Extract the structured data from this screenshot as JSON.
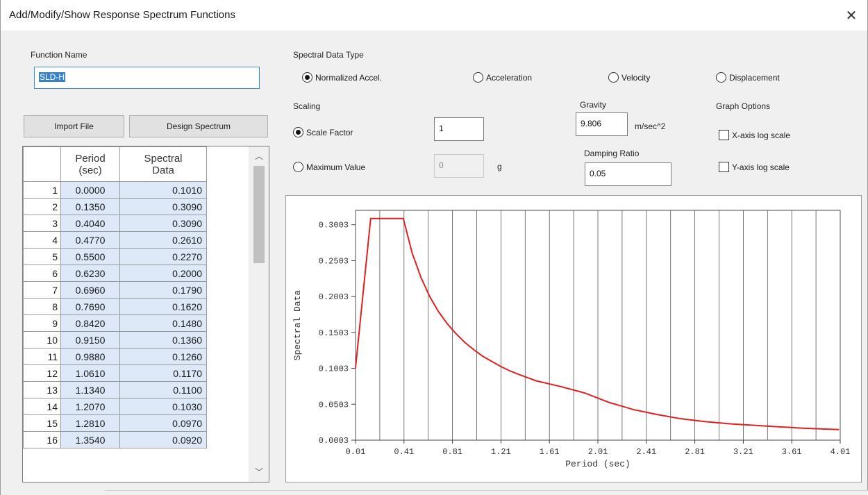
{
  "window": {
    "title": "Add/Modify/Show Response Spectrum Functions",
    "close_glyph": "✕"
  },
  "function_name": {
    "label": "Function Name",
    "value": "SLD-H"
  },
  "buttons": {
    "import_file": "Import File",
    "design_spectrum": "Design Spectrum"
  },
  "table": {
    "headers": {
      "period_l1": "Period",
      "period_l2": "(sec)",
      "spectral_l1": "Spectral",
      "spectral_l2": "Data"
    },
    "rows": [
      {
        "n": "1",
        "period": "0.0000",
        "value": "0.1010"
      },
      {
        "n": "2",
        "period": "0.1350",
        "value": "0.3090"
      },
      {
        "n": "3",
        "period": "0.4040",
        "value": "0.3090"
      },
      {
        "n": "4",
        "period": "0.4770",
        "value": "0.2610"
      },
      {
        "n": "5",
        "period": "0.5500",
        "value": "0.2270"
      },
      {
        "n": "6",
        "period": "0.6230",
        "value": "0.2000"
      },
      {
        "n": "7",
        "period": "0.6960",
        "value": "0.1790"
      },
      {
        "n": "8",
        "period": "0.7690",
        "value": "0.1620"
      },
      {
        "n": "9",
        "period": "0.8420",
        "value": "0.1480"
      },
      {
        "n": "10",
        "period": "0.9150",
        "value": "0.1360"
      },
      {
        "n": "11",
        "period": "0.9880",
        "value": "0.1260"
      },
      {
        "n": "12",
        "period": "1.0610",
        "value": "0.1170"
      },
      {
        "n": "13",
        "period": "1.1340",
        "value": "0.1100"
      },
      {
        "n": "14",
        "period": "1.2070",
        "value": "0.1030"
      },
      {
        "n": "15",
        "period": "1.2810",
        "value": "0.0970"
      },
      {
        "n": "16",
        "period": "1.3540",
        "value": "0.0920"
      }
    ]
  },
  "spectral_data_type": {
    "label": "Spectral Data Type",
    "options": [
      "Normalized Accel.",
      "Acceleration",
      "Velocity",
      "Displacement"
    ],
    "selected": "Normalized Accel."
  },
  "scaling": {
    "label": "Scaling",
    "scale_factor_label": "Scale Factor",
    "scale_factor_value": "1",
    "max_value_label": "Maximum Value",
    "max_value_value": "0",
    "max_value_unit": "g",
    "selected": "Scale Factor"
  },
  "gravity": {
    "label": "Gravity",
    "value": "9.806",
    "unit": "m/sec^2"
  },
  "damping": {
    "label": "Damping Ratio",
    "value": "0.05"
  },
  "graph_options": {
    "label": "Graph Options",
    "x_log": "X-axis log scale",
    "y_log": "Y-axis log scale",
    "x_log_checked": false,
    "y_log_checked": false
  },
  "colors": {
    "curve": "#e02020",
    "selection": "#3b82c4",
    "cell_bg": "#dde8f8"
  },
  "chart_data": {
    "type": "line",
    "title": "",
    "xlabel": "Period (sec)",
    "ylabel": "Spectral Data",
    "xlim": [
      0.01,
      4.01
    ],
    "ylim": [
      0.0003,
      0.3203
    ],
    "x_ticks": [
      "0.01",
      "0.41",
      "0.81",
      "1.21",
      "1.61",
      "2.01",
      "2.41",
      "2.81",
      "3.21",
      "3.61",
      "4.01"
    ],
    "y_ticks": [
      "0.0003",
      "0.0503",
      "0.1003",
      "0.1503",
      "0.2003",
      "0.2503",
      "0.3003"
    ],
    "grid": true,
    "series": [
      {
        "x": [
          0.0,
          0.135,
          0.404,
          0.477,
          0.55,
          0.623,
          0.696,
          0.769,
          0.842,
          0.915,
          0.988,
          1.061,
          1.134,
          1.207,
          1.281,
          1.354,
          1.5,
          1.7,
          1.9,
          2.1,
          2.3,
          2.5,
          2.7,
          2.9,
          3.1,
          3.3,
          3.5,
          3.7,
          4.0
        ],
        "y": [
          0.101,
          0.309,
          0.309,
          0.261,
          0.227,
          0.2,
          0.179,
          0.162,
          0.148,
          0.136,
          0.126,
          0.117,
          0.11,
          0.103,
          0.097,
          0.092,
          0.083,
          0.075,
          0.066,
          0.053,
          0.043,
          0.036,
          0.03,
          0.026,
          0.023,
          0.021,
          0.019,
          0.017,
          0.015
        ]
      }
    ]
  }
}
